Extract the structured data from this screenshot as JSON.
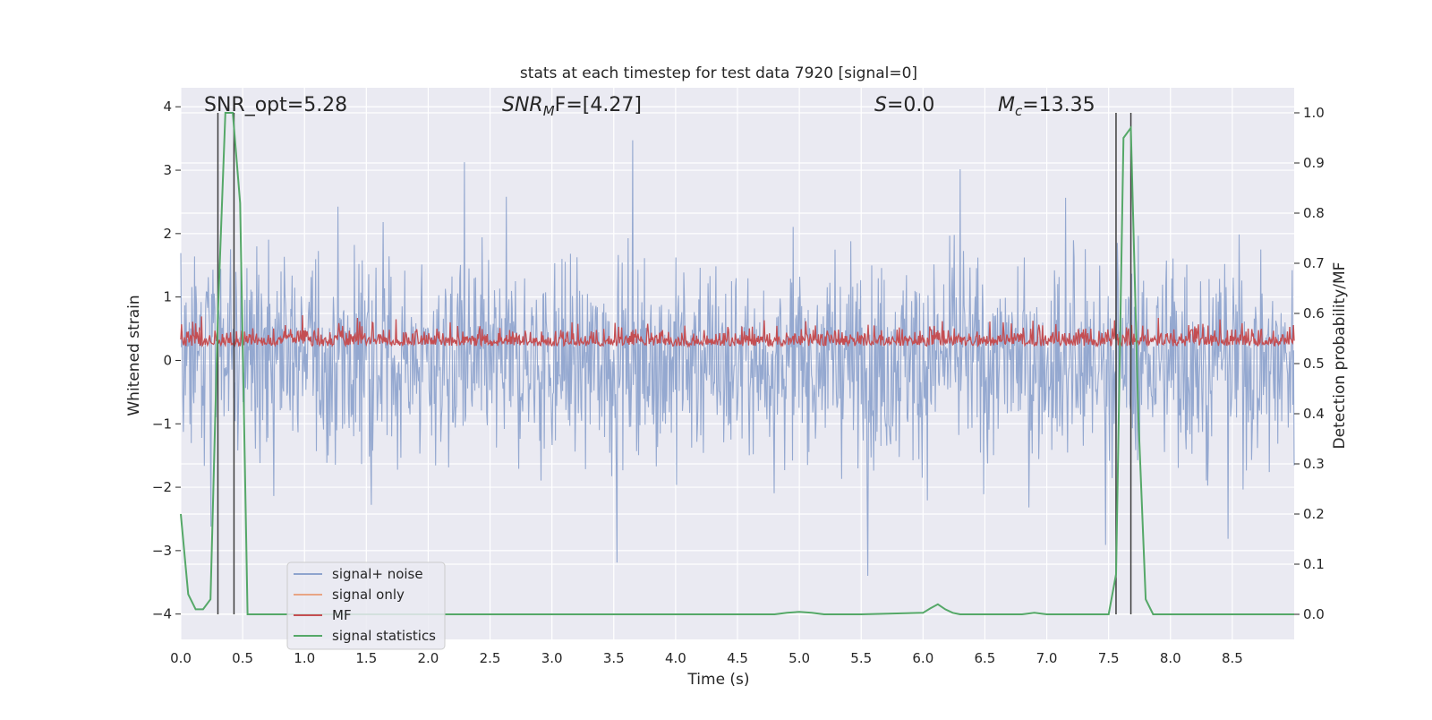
{
  "chart_data": {
    "type": "line",
    "title": "stats at each timestep for test data 7920 [signal=0]",
    "xlabel": "Time (s)",
    "ylabel_left": "Whitened strain",
    "ylabel_right": "Detection probability/MF",
    "xlim": [
      0.0,
      9.0
    ],
    "ylim_left": [
      -4.4,
      4.3
    ],
    "ylim_right": [
      -0.05,
      1.05
    ],
    "x_ticks": [
      "0.0",
      "0.5",
      "1.0",
      "1.5",
      "2.0",
      "2.5",
      "3.0",
      "3.5",
      "4.0",
      "4.5",
      "5.0",
      "5.5",
      "6.0",
      "6.5",
      "7.0",
      "7.5",
      "8.0",
      "8.5"
    ],
    "y_ticks_left": [
      "4",
      "3",
      "2",
      "1",
      "0",
      "−1",
      "−2",
      "−3",
      "−4"
    ],
    "y_ticks_right": [
      "1.0",
      "0.9",
      "0.8",
      "0.7",
      "0.6",
      "0.5",
      "0.4",
      "0.3",
      "0.2",
      "0.1",
      "0.0"
    ],
    "grid": true,
    "legend_position": "lower-left",
    "annotations": {
      "snr_opt": "SNR_opt=5.28",
      "snr_mf_base": "SNR",
      "snr_mf_sub": "M",
      "snr_mf_rest": "F=[4.27]",
      "s_italic": "S",
      "s_rest": "=0.0",
      "mc_base": "M",
      "mc_sub": "c",
      "mc_rest": "=13.35"
    },
    "series": [
      {
        "name": "signal+ noise",
        "color": "#8fa4ce",
        "axis": "left",
        "style": "dense-noise",
        "approx_range": [
          -3.4,
          3.9
        ]
      },
      {
        "name": "signal only",
        "color": "#e8a585",
        "axis": "left",
        "values": []
      },
      {
        "name": "MF",
        "color": "#c44e52",
        "axis": "right",
        "style": "dense-noise",
        "approx_range": [
          0.51,
          0.63
        ]
      },
      {
        "name": "signal statistics",
        "color": "#55a868",
        "axis": "right",
        "x": [
          0.0,
          0.06,
          0.12,
          0.18,
          0.24,
          0.3,
          0.36,
          0.42,
          0.48,
          0.54,
          0.6,
          0.7,
          1.0,
          2.0,
          3.0,
          4.0,
          4.8,
          4.9,
          5.0,
          5.1,
          5.2,
          5.5,
          6.0,
          6.06,
          6.12,
          6.18,
          6.24,
          6.3,
          6.5,
          6.8,
          6.9,
          7.0,
          7.5,
          7.56,
          7.62,
          7.68,
          7.74,
          7.8,
          7.86,
          7.92,
          8.5,
          9.0
        ],
        "values": [
          0.2,
          0.04,
          0.01,
          0.01,
          0.03,
          0.6,
          1.0,
          1.0,
          0.82,
          0.0,
          0.0,
          0.0,
          0.0,
          0.0,
          0.0,
          0.0,
          0.0,
          0.003,
          0.005,
          0.003,
          0.0,
          0.0,
          0.003,
          0.012,
          0.02,
          0.01,
          0.003,
          0.0,
          0.0,
          0.0,
          0.003,
          0.0,
          0.0,
          0.08,
          0.95,
          0.97,
          0.4,
          0.03,
          0.0,
          0.0,
          0.0,
          0.0
        ]
      }
    ],
    "vertical_lines": [
      {
        "color": "#3d3d3d",
        "x": [
          0.3,
          0.43,
          7.56,
          7.68
        ]
      }
    ]
  }
}
